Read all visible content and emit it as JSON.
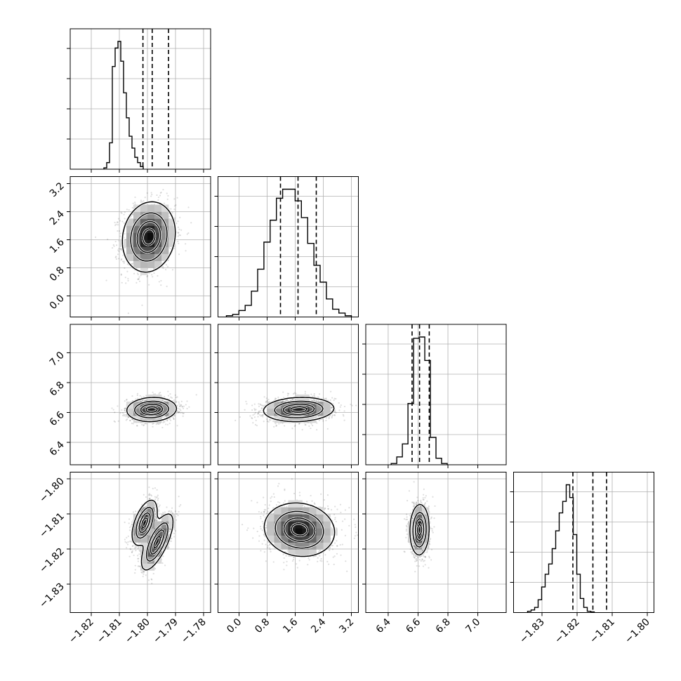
{
  "chart_data": {
    "type": "corner",
    "title": "",
    "params": [
      {
        "range": [
          -1.8275,
          -1.7775
        ],
        "ticks": [
          -1.82,
          -1.81,
          -1.8,
          -1.79,
          -1.78
        ],
        "tick_labels": [
          "−1.82",
          "−1.81",
          "−1.80",
          "−1.79",
          "−1.78"
        ],
        "quantiles": [
          -1.8016,
          -1.7983,
          -1.7925
        ],
        "hist": {
          "edges_start": -1.8155,
          "bin_width": 0.001,
          "counts": [
            0.01,
            0.05,
            0.2,
            0.78,
            0.92,
            0.97,
            0.82,
            0.58,
            0.39,
            0.25,
            0.16,
            0.09,
            0.05,
            0.02
          ]
        }
      },
      {
        "range": [
          -0.6,
          3.4
        ],
        "ticks": [
          0.0,
          0.8,
          1.6,
          2.4,
          3.2
        ],
        "tick_labels": [
          "0.0",
          "0.8",
          "1.6",
          "2.4",
          "3.2"
        ],
        "quantiles": [
          1.18,
          1.68,
          2.2
        ],
        "hist": {
          "edges_start": -0.36,
          "bin_width": 0.178,
          "counts": [
            0.01,
            0.02,
            0.05,
            0.09,
            0.2,
            0.37,
            0.58,
            0.75,
            0.92,
            0.99,
            0.99,
            0.9,
            0.77,
            0.57,
            0.4,
            0.27,
            0.14,
            0.06,
            0.03,
            0.01
          ]
        }
      },
      {
        "range": [
          6.25,
          7.19
        ],
        "ticks": [
          6.4,
          6.6,
          6.8,
          7.0
        ],
        "tick_labels": [
          "6.4",
          "6.6",
          "6.8",
          "7.0"
        ],
        "quantiles": [
          6.56,
          6.61,
          6.675
        ],
        "hist": {
          "edges_start": 6.42,
          "bin_width": 0.0375,
          "counts": [
            0.01,
            0.06,
            0.16,
            0.47,
            0.97,
            0.98,
            0.8,
            0.21,
            0.05,
            0.01
          ]
        }
      },
      {
        "range": [
          -1.8381,
          -1.7981
        ],
        "ticks": [
          -1.83,
          -1.82,
          -1.81,
          -1.8
        ],
        "tick_labels": [
          "−1.83",
          "−1.82",
          "−1.81",
          "−1.80"
        ],
        "quantiles": [
          -1.8212,
          -1.8155,
          -1.8116
        ],
        "hist": {
          "edges_start": -1.8341,
          "bin_width": 0.001,
          "counts": [
            0.01,
            0.02,
            0.04,
            0.1,
            0.2,
            0.3,
            0.38,
            0.5,
            0.64,
            0.78,
            0.87,
            1.0,
            0.9,
            0.61,
            0.3,
            0.11,
            0.04,
            0.01,
            0.005
          ]
        }
      }
    ],
    "pairs": [
      {
        "row": 1,
        "col": 0,
        "clusters": [
          {
            "cx": -1.7995,
            "cy": 1.68,
            "sx": 0.0047,
            "sy": 0.5,
            "rho": 0.12,
            "w": 1.0
          }
        ]
      },
      {
        "row": 2,
        "col": 0,
        "clusters": [
          {
            "cx": -1.7985,
            "cy": 6.62,
            "sx": 0.0044,
            "sy": 0.04,
            "rho": 0.08,
            "w": 1.0
          }
        ]
      },
      {
        "row": 2,
        "col": 1,
        "clusters": [
          {
            "cx": 1.7,
            "cy": 6.62,
            "sx": 0.5,
            "sy": 0.04,
            "rho": 0.1,
            "w": 1.0
          }
        ]
      },
      {
        "row": 3,
        "col": 0,
        "clusters": [
          {
            "cx": -1.801,
            "cy": -1.8125,
            "sx": 0.0022,
            "sy": 0.0032,
            "rho": 0.55,
            "w": 0.55
          },
          {
            "cx": -1.7965,
            "cy": -1.818,
            "sx": 0.0028,
            "sy": 0.004,
            "rho": 0.72,
            "w": 0.45
          }
        ]
      },
      {
        "row": 3,
        "col": 1,
        "clusters": [
          {
            "cx": 1.72,
            "cy": -1.8145,
            "sx": 0.5,
            "sy": 0.0038,
            "rho": -0.1,
            "w": 1.0
          }
        ]
      },
      {
        "row": 3,
        "col": 2,
        "clusters": [
          {
            "cx": 6.61,
            "cy": -1.8145,
            "sx": 0.032,
            "sy": 0.0036,
            "rho": 0.05,
            "w": 1.0
          }
        ]
      }
    ]
  }
}
